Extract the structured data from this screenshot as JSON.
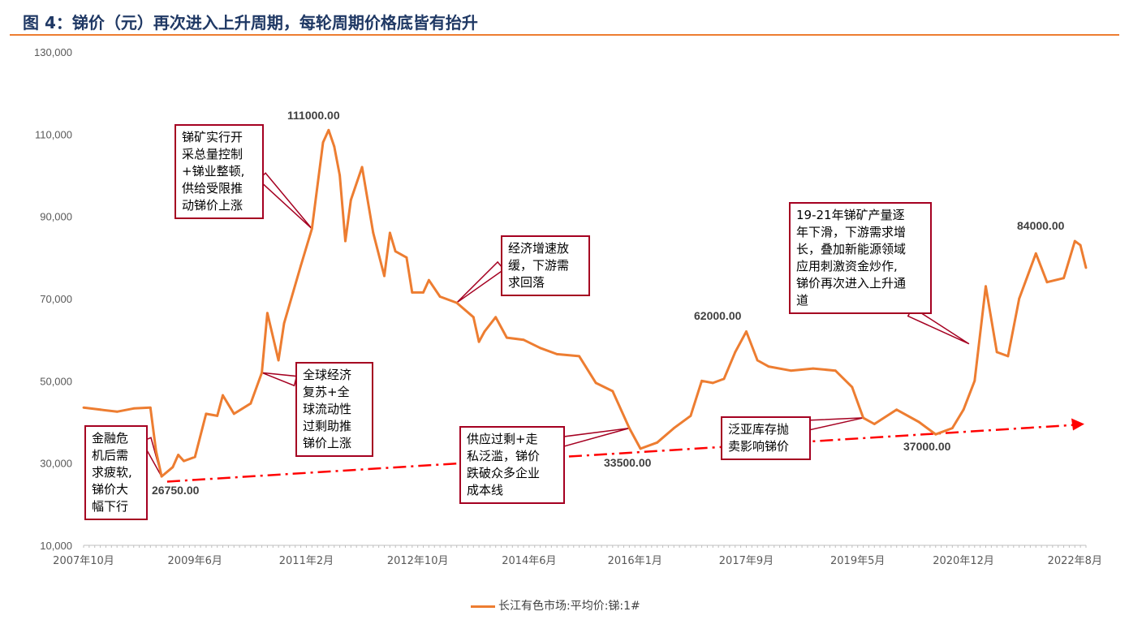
{
  "figure": {
    "title": "图 4：锑价（元）再次进入上升周期，每轮周期价格底皆有抬升"
  },
  "colors": {
    "series": "#ed7d31",
    "annotation_border": "#a50021",
    "trend": "#ff0000",
    "title": "#1f3864"
  },
  "chart_data": {
    "type": "line",
    "title": "",
    "xlabel": "",
    "ylabel": "",
    "ylim": [
      10000,
      130000
    ],
    "yticks": [
      "130,000",
      "110,000",
      "90,000",
      "70,000",
      "50,000",
      "30,000",
      "10,000"
    ],
    "ytick_values": [
      130000,
      110000,
      90000,
      70000,
      50000,
      30000,
      10000
    ],
    "xlim": [
      "2007-10",
      "2022-10"
    ],
    "xticks": [
      "2007年10月",
      "2009年6月",
      "2011年2月",
      "2012年10月",
      "2014年6月",
      "2016年1月",
      "2017年9月",
      "2019年5月",
      "2020年12月",
      "2022年8月"
    ],
    "xtick_dates": [
      "2007-10",
      "2009-06",
      "2011-02",
      "2012-10",
      "2014-06",
      "2016-01",
      "2017-09",
      "2019-05",
      "2020-12",
      "2022-08"
    ],
    "legend": "bottom",
    "series": [
      {
        "name": "长江有色市场:平均价:锑:1#",
        "points": [
          [
            "2007-10",
            43500
          ],
          [
            "2008-01",
            43000
          ],
          [
            "2008-04",
            42500
          ],
          [
            "2008-07",
            43300
          ],
          [
            "2008-10",
            43500
          ],
          [
            "2008-11",
            33000
          ],
          [
            "2008-12",
            26750
          ],
          [
            "2009-02",
            29000
          ],
          [
            "2009-03",
            32000
          ],
          [
            "2009-04",
            30500
          ],
          [
            "2009-06",
            31500
          ],
          [
            "2009-08",
            42000
          ],
          [
            "2009-10",
            41500
          ],
          [
            "2009-11",
            46500
          ],
          [
            "2010-01",
            42000
          ],
          [
            "2010-04",
            44500
          ],
          [
            "2010-06",
            52000
          ],
          [
            "2010-07",
            66500
          ],
          [
            "2010-09",
            55000
          ],
          [
            "2010-10",
            64000
          ],
          [
            "2011-01",
            78000
          ],
          [
            "2011-03",
            87000
          ],
          [
            "2011-05",
            108000
          ],
          [
            "2011-06",
            111000
          ],
          [
            "2011-07",
            107000
          ],
          [
            "2011-08",
            100000
          ],
          [
            "2011-09",
            84000
          ],
          [
            "2011-10",
            94000
          ],
          [
            "2011-12",
            102000
          ],
          [
            "2012-02",
            86000
          ],
          [
            "2012-04",
            75500
          ],
          [
            "2012-05",
            86000
          ],
          [
            "2012-06",
            81500
          ],
          [
            "2012-08",
            80000
          ],
          [
            "2012-09",
            71500
          ],
          [
            "2012-11",
            71500
          ],
          [
            "2012-12",
            74500
          ],
          [
            "2013-02",
            70500
          ],
          [
            "2013-05",
            69000
          ],
          [
            "2013-08",
            65500
          ],
          [
            "2013-09",
            59500
          ],
          [
            "2013-10",
            62000
          ],
          [
            "2013-12",
            65500
          ],
          [
            "2014-02",
            60500
          ],
          [
            "2014-05",
            60000
          ],
          [
            "2014-08",
            58000
          ],
          [
            "2014-11",
            56500
          ],
          [
            "2015-03",
            56000
          ],
          [
            "2015-06",
            49500
          ],
          [
            "2015-09",
            47500
          ],
          [
            "2015-12",
            38500
          ],
          [
            "2016-02",
            33500
          ],
          [
            "2016-05",
            35000
          ],
          [
            "2016-08",
            38500
          ],
          [
            "2016-11",
            41500
          ],
          [
            "2017-01",
            50000
          ],
          [
            "2017-03",
            49500
          ],
          [
            "2017-05",
            50500
          ],
          [
            "2017-07",
            57000
          ],
          [
            "2017-09",
            62000
          ],
          [
            "2017-11",
            55000
          ],
          [
            "2018-01",
            53500
          ],
          [
            "2018-05",
            52500
          ],
          [
            "2018-09",
            53000
          ],
          [
            "2019-01",
            52500
          ],
          [
            "2019-04",
            48500
          ],
          [
            "2019-06",
            41000
          ],
          [
            "2019-08",
            39500
          ],
          [
            "2019-12",
            43000
          ],
          [
            "2020-04",
            40000
          ],
          [
            "2020-07",
            37000
          ],
          [
            "2020-10",
            38500
          ],
          [
            "2020-12",
            43000
          ],
          [
            "2021-02",
            50000
          ],
          [
            "2021-04",
            73000
          ],
          [
            "2021-06",
            57000
          ],
          [
            "2021-08",
            56000
          ],
          [
            "2021-10",
            70000
          ],
          [
            "2022-01",
            81000
          ],
          [
            "2022-03",
            74000
          ],
          [
            "2022-06",
            75000
          ],
          [
            "2022-08",
            84000
          ],
          [
            "2022-09",
            83000
          ],
          [
            "2022-10",
            77500
          ]
        ]
      }
    ],
    "trendline": {
      "points": [
        [
          "2009-01",
          25500
        ],
        [
          "2022-10",
          39500
        ]
      ]
    },
    "data_labels": [
      {
        "date": "2011-06",
        "value": 111000,
        "text": "111000.00"
      },
      {
        "date": "2008-12",
        "value": 26750,
        "text": "26750.00"
      },
      {
        "date": "2016-02",
        "value": 33500,
        "text": "33500.00"
      },
      {
        "date": "2017-09",
        "value": 62000,
        "text": "62000.00"
      },
      {
        "date": "2020-07",
        "value": 37000,
        "text": "37000.00"
      },
      {
        "date": "2022-08",
        "value": 84000,
        "text": "84000.00"
      }
    ],
    "annotations": [
      {
        "id": "crisis",
        "lines": [
          "金融危",
          "机后需",
          "求疲软,",
          "锑价大",
          "幅下行"
        ],
        "points_to": [
          "2008-12",
          26750
        ]
      },
      {
        "id": "recovery",
        "lines": [
          "全球经济",
          "复苏+全",
          "球流动性",
          "过剩助推",
          "锑价上涨"
        ],
        "points_to": [
          "2010-06",
          52000
        ]
      },
      {
        "id": "quota",
        "lines": [
          "锑矿实行开",
          "采总量控制",
          "+锑业整顿,",
          "供给受限推",
          "动锑价上涨"
        ],
        "points_to": [
          "2011-03",
          87000
        ]
      },
      {
        "id": "slowdown",
        "lines": [
          "经济增速放",
          "缓，下游需",
          "求回落"
        ],
        "points_to": [
          "2013-05",
          69000
        ]
      },
      {
        "id": "oversupply",
        "lines": [
          "供应过剩+走",
          "私泛滥，锑价",
          "跌破众多企业",
          "成本线"
        ],
        "points_to": [
          "2015-12",
          38500
        ]
      },
      {
        "id": "fanya",
        "lines": [
          "泛亚库存抛",
          "卖影响锑价"
        ],
        "points_to": [
          "2019-06",
          41000
        ]
      },
      {
        "id": "newenergy",
        "lines": [
          "19-21年锑矿产量逐",
          "年下滑，下游需求增",
          "长，叠加新能源领域",
          "应用刺激资金炒作,",
          "锑价再次进入上升通",
          "道"
        ],
        "points_to": [
          "2021-01",
          59000
        ]
      }
    ]
  }
}
